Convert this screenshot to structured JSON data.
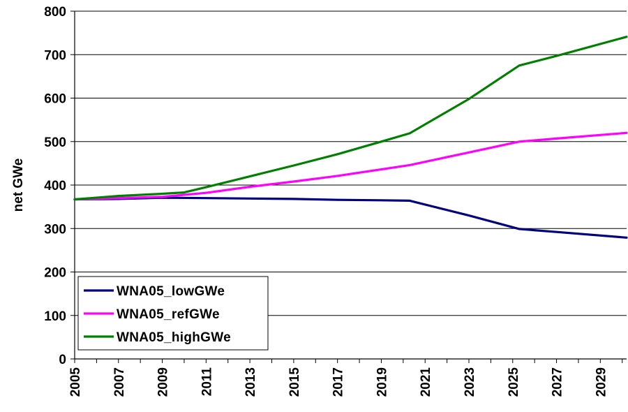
{
  "chart_data": {
    "type": "line",
    "title": "",
    "xlabel": "",
    "ylabel": "net GWe",
    "ylim": [
      0,
      800
    ],
    "xlim": [
      2005,
      2030
    ],
    "grid": true,
    "legend_position": "bottom-left",
    "y_ticks": [
      "0",
      "100",
      "200",
      "300",
      "400",
      "500",
      "600",
      "700",
      "800"
    ],
    "x_ticks": [
      "2005",
      "2007",
      "2009",
      "2011",
      "2013",
      "2015",
      "2017",
      "2019",
      "2021",
      "2023",
      "2025",
      "2027",
      "2029"
    ],
    "series": [
      {
        "name": "WNA05_lowGWe",
        "color": "#000080",
        "x": [
          2005,
          2007,
          2009,
          2011,
          2013,
          2015,
          2017,
          2019,
          2020.3,
          2023,
          2025.3,
          2027,
          2030.2
        ],
        "values": [
          367,
          368,
          371,
          370,
          369,
          368,
          366,
          365,
          364,
          330,
          299,
          292,
          279
        ]
      },
      {
        "name": "WNA05_refGWe",
        "color": "#ff00ff",
        "x": [
          2005,
          2007,
          2009,
          2011,
          2013,
          2015,
          2017,
          2019,
          2020.3,
          2023,
          2025.3,
          2027,
          2030.2
        ],
        "values": [
          367,
          370,
          373,
          382,
          396,
          408,
          421,
          436,
          446,
          475,
          500,
          507,
          520
        ]
      },
      {
        "name": "WNA05_highGWe",
        "color": "#008000",
        "x": [
          2005,
          2007,
          2009,
          2010,
          2011,
          2013,
          2015,
          2017,
          2019,
          2020.3,
          2023,
          2025.3,
          2027,
          2030.2
        ],
        "values": [
          367,
          375,
          380,
          383,
          395,
          420,
          445,
          471,
          500,
          519,
          598,
          675,
          697,
          741
        ]
      }
    ]
  }
}
